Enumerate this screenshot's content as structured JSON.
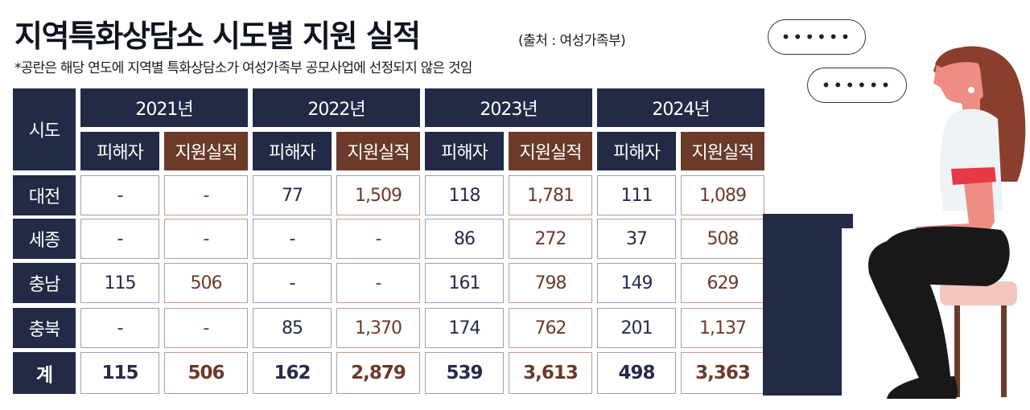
{
  "title": "지역특화상담소 시도별 지원 실적",
  "source": "(출처 : 여성가족부)",
  "note": "*공란은 해당 연도에 지역별 특화상담소가 여성가족부 공모사업에 선정되지 않은 것임",
  "bubbles": [
    "••••••",
    "••••••"
  ],
  "colors": {
    "navy": "#232a45",
    "brown": "#6b3a2a",
    "skin": "#ef8c84",
    "hair": "#8a3f2c"
  },
  "chart_data": {
    "type": "table",
    "row_header": "시도",
    "years": [
      "2021년",
      "2022년",
      "2023년",
      "2024년"
    ],
    "sub_headers": [
      "피해자",
      "지원실적"
    ],
    "rows": [
      {
        "region": "대전",
        "values": [
          "-",
          "-",
          "77",
          "1,509",
          "118",
          "1,781",
          "111",
          "1,089"
        ]
      },
      {
        "region": "세종",
        "values": [
          "-",
          "-",
          "-",
          "-",
          "86",
          "272",
          "37",
          "508"
        ]
      },
      {
        "region": "충남",
        "values": [
          "115",
          "506",
          "-",
          "-",
          "161",
          "798",
          "149",
          "629"
        ]
      },
      {
        "region": "충북",
        "values": [
          "-",
          "-",
          "85",
          "1,370",
          "174",
          "762",
          "201",
          "1,137"
        ]
      },
      {
        "region": "계",
        "values": [
          "115",
          "506",
          "162",
          "2,879",
          "539",
          "3,613",
          "498",
          "3,363"
        ]
      }
    ]
  }
}
